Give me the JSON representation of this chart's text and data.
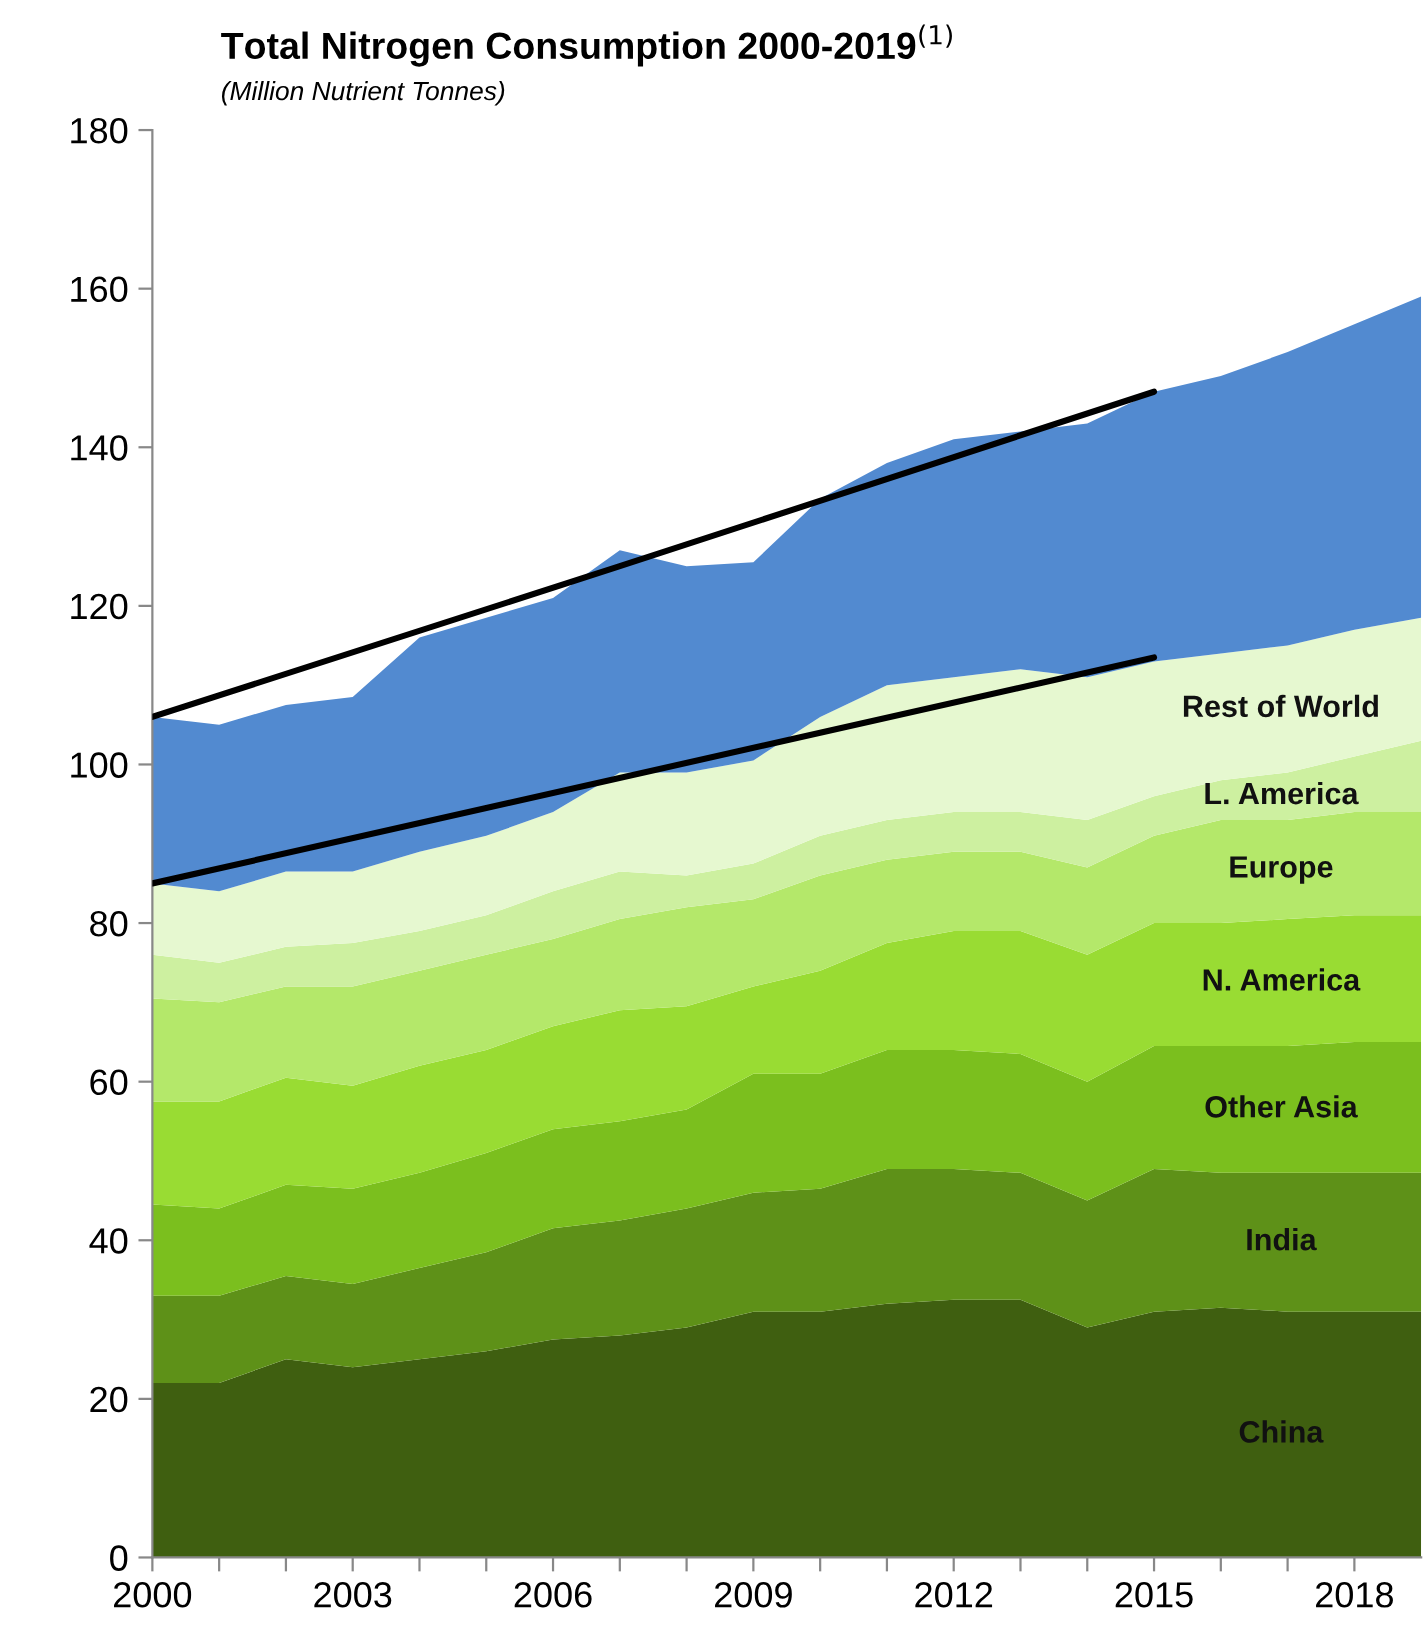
{
  "chart_data": {
    "type": "area",
    "stacked": true,
    "title": "Total Nitrogen Consumption 2000-2019$^{(1)}$",
    "subtitle": "(Million Nutrient Tonnes)",
    "x": [
      2000,
      2001,
      2002,
      2003,
      2004,
      2005,
      2006,
      2007,
      2008,
      2009,
      2010,
      2011,
      2012,
      2013,
      2014,
      2015,
      2016,
      2017,
      2018,
      2019
    ],
    "series": [
      {
        "type": "line",
        "color": "#000000",
        "x": [
          2000,
          2007,
          2015
        ],
        "values": [
          106,
          125,
          147
        ]
      },
      {
        "type": "line",
        "color": "#000000",
        "x": [
          2000,
          2005,
          2010,
          2015
        ],
        "values": [
          85,
          94.5,
          104,
          113.5
        ]
      },
      {
        "name": "China",
        "color": "#3f5f10",
        "values": [
          22,
          22,
          25,
          24,
          25,
          26,
          27.5,
          28,
          29,
          31,
          31,
          32,
          32.5,
          32.5,
          29,
          31,
          31.5,
          31,
          31,
          31
        ]
      },
      {
        "name": "India",
        "color": "#5e9118",
        "values": [
          11,
          11,
          10.5,
          10.5,
          11.5,
          12.5,
          14,
          14.5,
          15,
          15,
          15.5,
          17,
          16.5,
          16,
          16,
          18,
          17,
          17.5,
          17.5,
          17.5
        ]
      },
      {
        "name": "Other Asia",
        "color": "#7bbf1e",
        "values": [
          11.5,
          11,
          11.5,
          12,
          12,
          12.5,
          12.5,
          12.5,
          12.5,
          15,
          14.5,
          15,
          15,
          15,
          15,
          15.5,
          16,
          16,
          16.5,
          16.5
        ]
      },
      {
        "name": "N. America",
        "color": "#99dc33",
        "values": [
          13,
          13.5,
          13.5,
          13,
          13.5,
          13,
          13,
          14,
          13,
          11,
          13,
          13.5,
          15,
          15.5,
          16,
          15.5,
          15.5,
          16,
          16,
          16
        ]
      },
      {
        "name": "Europe",
        "color": "#b4e86a",
        "values": [
          13,
          12.5,
          11.5,
          12.5,
          12,
          12,
          11,
          11.5,
          12.5,
          11,
          12,
          10.5,
          10,
          10,
          11,
          11,
          13,
          12.5,
          13,
          13
        ]
      },
      {
        "name": "L. America",
        "color": "#cdf0a0",
        "values": [
          5.5,
          5,
          5,
          5.5,
          5,
          5,
          6,
          6,
          4,
          4.5,
          5,
          5,
          5,
          5,
          6,
          5,
          5,
          6,
          7,
          9
        ]
      },
      {
        "name": "Rest of World",
        "color": "#e6f8d0",
        "values": [
          9,
          9,
          9.5,
          9,
          10,
          10,
          10,
          12.5,
          13,
          13,
          15,
          17,
          17,
          18,
          18,
          17,
          16,
          16,
          16,
          15.5
        ]
      },
      {
        "color": "#528ad0",
        "values": [
          21,
          21,
          21,
          22,
          27,
          27.5,
          27,
          28,
          26,
          25,
          27.5,
          28,
          30,
          30,
          32,
          34,
          35,
          37,
          38.5,
          40.5
        ]
      }
    ],
    "xlim": [
      2000,
      2019
    ],
    "xticks": [
      2000,
      {
        "value": 2001,
        "label": null
      },
      {
        "value": 2002,
        "label": null
      },
      2003,
      {
        "value": 2004,
        "label": null
      },
      {
        "value": 2005,
        "label": null
      },
      2006,
      {
        "value": 2007,
        "label": null
      },
      {
        "value": 2008,
        "label": null
      },
      2009,
      {
        "value": 2010,
        "label": null
      },
      {
        "value": 2011,
        "label": null
      },
      2012,
      {
        "value": 2013,
        "label": null
      },
      {
        "value": 2014,
        "label": null
      },
      2015,
      {
        "value": 2016,
        "label": null
      },
      {
        "value": 2017,
        "label": null
      },
      2018
    ],
    "ylim": [
      0,
      180
    ],
    "yticks": [
      0,
      20,
      40,
      60,
      80,
      100,
      120,
      140,
      160,
      180
    ],
    "grid": false,
    "legend": false
  }
}
